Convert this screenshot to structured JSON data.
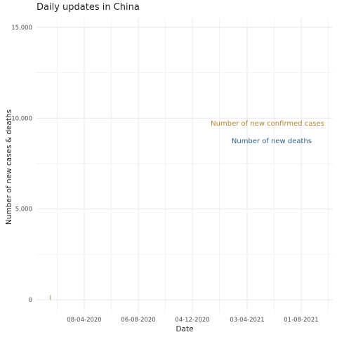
{
  "chart_data": {
    "type": "bar",
    "title": "Daily updates in China",
    "xlabel": "Date",
    "ylabel": "Number of new cases & deaths",
    "x_ticks": [
      "08-04-2020",
      "06-08-2020",
      "04-12-2020",
      "03-04-2021",
      "01-08-2021"
    ],
    "y_ticks": [
      "0",
      "5,000",
      "10,000",
      "15,000"
    ],
    "ylim": [
      0,
      15500
    ],
    "grid": true,
    "annotations": [
      {
        "text": "Number of new confirmed cases",
        "color": "#b8862e"
      },
      {
        "text": "Number of new deaths",
        "color": "#2f5f8a"
      }
    ],
    "series": [
      {
        "name": "Number of new confirmed cases",
        "color": "#d9a05a",
        "values": [
          250
        ]
      },
      {
        "name": "Number of new deaths",
        "color": "#3a6ea5",
        "values": [
          0
        ]
      }
    ]
  }
}
